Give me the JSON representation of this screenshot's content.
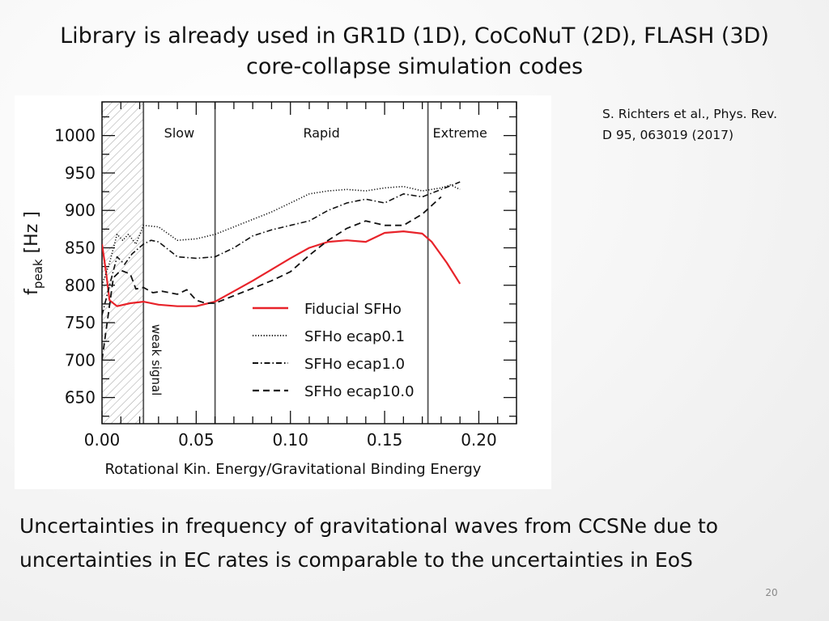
{
  "slide": {
    "title_lines": [
      "Library is already used in GR1D (1D), CoCoNuT (2D), FLASH (3D)",
      "core-collapse simulation codes"
    ],
    "citation_lines": [
      "S. Richters et al., Phys. Rev.",
      "D 95, 063019 (2017)"
    ],
    "caption_lines": [
      "Uncertainties in frequency of gravitational waves from CCSNe due to",
      "uncertainties in EC rates is comparable to the uncertainties in EoS"
    ],
    "page_number": "20"
  },
  "chart_data": {
    "type": "line",
    "title": "",
    "xlabel": "Rotational Kin. Energy/Gravitational Binding Energy",
    "ylabel": "f",
    "ylabel_subscript": "peak",
    "ylabel_unit": "[Hz ]",
    "xlim": [
      0.0,
      0.22
    ],
    "ylim": [
      615,
      1045
    ],
    "x_ticks": [
      0.0,
      0.05,
      0.1,
      0.15,
      0.2
    ],
    "x_tick_labels": [
      "0.00",
      "0.05",
      "0.10",
      "0.15",
      "0.20"
    ],
    "y_ticks": [
      650,
      700,
      750,
      800,
      850,
      900,
      950,
      1000
    ],
    "y_tick_labels": [
      "650",
      "700",
      "750",
      "800",
      "850",
      "900",
      "950",
      "1000"
    ],
    "grid": false,
    "legend_position": "center-right",
    "hatched_region": {
      "x_range": [
        0.0,
        0.022
      ],
      "label": "weak signal"
    },
    "regions": [
      {
        "label": "Slow",
        "x_start": 0.022,
        "x_end": 0.06
      },
      {
        "label": "Rapid",
        "x_start": 0.06,
        "x_end": 0.173
      },
      {
        "label": "Extreme",
        "x_start": 0.173,
        "x_end": 0.22
      }
    ],
    "region_boundaries": [
      0.022,
      0.06,
      0.173
    ],
    "series": [
      {
        "name": "Fiducial SFHo",
        "style": "solid",
        "color": "#e8232a",
        "x": [
          0.0,
          0.002,
          0.004,
          0.008,
          0.015,
          0.022,
          0.03,
          0.04,
          0.05,
          0.06,
          0.07,
          0.08,
          0.09,
          0.1,
          0.11,
          0.12,
          0.13,
          0.14,
          0.15,
          0.16,
          0.17,
          0.175,
          0.183,
          0.19
        ],
        "y": [
          855,
          820,
          780,
          772,
          776,
          778,
          774,
          772,
          772,
          778,
          792,
          806,
          821,
          836,
          850,
          858,
          860,
          858,
          870,
          872,
          869,
          858,
          830,
          802
        ]
      },
      {
        "name": "SFHo ecap0.1",
        "style": "dotted",
        "color": "#111111",
        "x": [
          0.0,
          0.004,
          0.008,
          0.011,
          0.014,
          0.018,
          0.022,
          0.03,
          0.04,
          0.05,
          0.06,
          0.07,
          0.08,
          0.09,
          0.1,
          0.11,
          0.12,
          0.13,
          0.14,
          0.15,
          0.16,
          0.17,
          0.18,
          0.185,
          0.19
        ],
        "y": [
          800,
          830,
          868,
          860,
          868,
          855,
          880,
          878,
          860,
          862,
          868,
          878,
          888,
          898,
          910,
          922,
          926,
          928,
          926,
          930,
          932,
          926,
          930,
          934,
          928
        ]
      },
      {
        "name": "SFHo ecap1.0",
        "style": "dashdot",
        "color": "#111111",
        "x": [
          0.0,
          0.004,
          0.008,
          0.012,
          0.016,
          0.022,
          0.026,
          0.03,
          0.035,
          0.04,
          0.05,
          0.06,
          0.07,
          0.08,
          0.09,
          0.1,
          0.11,
          0.12,
          0.13,
          0.14,
          0.15,
          0.16,
          0.17,
          0.18,
          0.19
        ],
        "y": [
          760,
          800,
          838,
          828,
          842,
          855,
          860,
          858,
          848,
          838,
          836,
          838,
          850,
          866,
          874,
          880,
          886,
          900,
          910,
          915,
          910,
          922,
          918,
          928,
          938
        ]
      },
      {
        "name": "SFHo ecap10.0",
        "style": "dashed",
        "color": "#111111",
        "x": [
          0.0,
          0.003,
          0.006,
          0.01,
          0.015,
          0.018,
          0.022,
          0.027,
          0.032,
          0.04,
          0.045,
          0.05,
          0.055,
          0.06,
          0.07,
          0.08,
          0.09,
          0.1,
          0.11,
          0.12,
          0.13,
          0.14,
          0.15,
          0.16,
          0.17,
          0.18
        ],
        "y": [
          700,
          755,
          810,
          820,
          815,
          795,
          797,
          790,
          792,
          788,
          794,
          780,
          776,
          776,
          786,
          796,
          806,
          818,
          840,
          860,
          876,
          886,
          880,
          880,
          895,
          918
        ]
      }
    ]
  }
}
